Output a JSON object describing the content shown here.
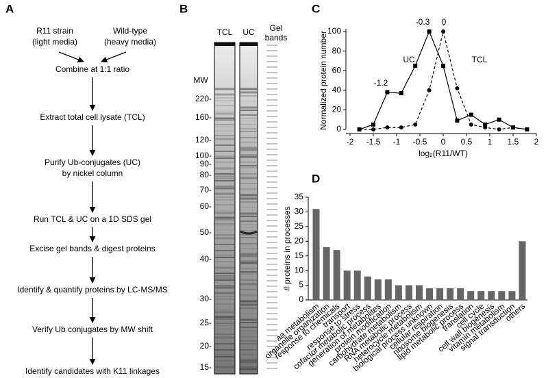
{
  "flowchart": {
    "label": "A",
    "inputs": [
      [
        "R11 strain",
        "(light media)"
      ],
      [
        "Wild-type",
        "(heavy media)"
      ]
    ],
    "steps": [
      [
        "Combine at 1:1 ratio"
      ],
      [
        "Extract total cell lysate (TCL)"
      ],
      [
        "Purify Ub-conjugates (UC)",
        "by nickel column"
      ],
      [
        "Run TCL & UC on a 1D SDS gel"
      ],
      [
        "Excise gel bands & digest proteins"
      ],
      [
        "Identify & quantify proteins by LC-MS/MS"
      ],
      [
        "Verify Ub conjugates by MW shift"
      ],
      [
        "Identify candidates with K11 linkages"
      ]
    ]
  },
  "gel": {
    "label": "B",
    "lanes": [
      "TCL",
      "UC"
    ],
    "bands_label": [
      "Gel",
      "bands"
    ],
    "mw_title": "MW",
    "mw_labels": [
      "220-",
      "160-",
      "120-",
      "100-",
      "90-",
      "80-",
      "70-",
      "60-",
      "50-",
      "40-",
      "30-",
      "25-",
      "20-",
      "15-"
    ]
  },
  "chart_data": [
    {
      "type": "line",
      "panel": "C",
      "xlabel": "log₂(R11/WT)",
      "ylabel": "Normalized protein number",
      "x": [
        -1.8,
        -1.5,
        -1.2,
        -0.9,
        -0.6,
        -0.3,
        0,
        0.3,
        0.6,
        0.9,
        1.2,
        1.5,
        1.8
      ],
      "series": [
        {
          "name": "UC",
          "color": "#000000",
          "dashed": false,
          "marker": "square",
          "values": [
            0,
            5,
            38,
            37,
            65,
            100,
            65,
            9,
            15,
            5,
            10,
            2,
            0
          ]
        },
        {
          "name": "TCL",
          "color": "#000000",
          "dashed": true,
          "marker": "circle",
          "values": [
            0,
            0,
            2,
            2,
            5,
            40,
            100,
            42,
            5,
            2,
            0,
            2,
            0
          ]
        }
      ],
      "annotations": [
        "-1.2",
        "-0.3",
        "0"
      ],
      "xlim": [
        -2,
        2
      ],
      "xticks": [
        -2,
        -1.5,
        -1,
        -0.5,
        0,
        0.5,
        1,
        1.5,
        2
      ],
      "ylim": [
        0,
        100
      ],
      "yticks": [
        0,
        20,
        40,
        60,
        80,
        100
      ]
    },
    {
      "type": "bar",
      "panel": "D",
      "ylabel": "# proteins in processes",
      "color": "#666666",
      "categories": [
        "aa metabolism",
        "organelle organization",
        "response to chemicals",
        "transport",
        "response to stress",
        "cofactor metabolic process",
        "generation of metabolites",
        "protein modification",
        "carbohydrate metabolism",
        "RNA metabolic process",
        "heterocycle metabolism",
        "biological process unknown",
        "cellular respiration",
        "ribosome biogenesis",
        "lipid metabolic process",
        "translation",
        "cell cycle",
        "cell wall biogenesis",
        "vitamin metabolism",
        "signal transduction",
        "others"
      ],
      "values": [
        31,
        18,
        17,
        10,
        10,
        8,
        7,
        7,
        5,
        5,
        5,
        4,
        4,
        4,
        4,
        3,
        3,
        3,
        3,
        3,
        20
      ],
      "ylim": [
        0,
        35
      ],
      "yticks": [
        0,
        5,
        10,
        15,
        20,
        25,
        30,
        35
      ]
    }
  ]
}
